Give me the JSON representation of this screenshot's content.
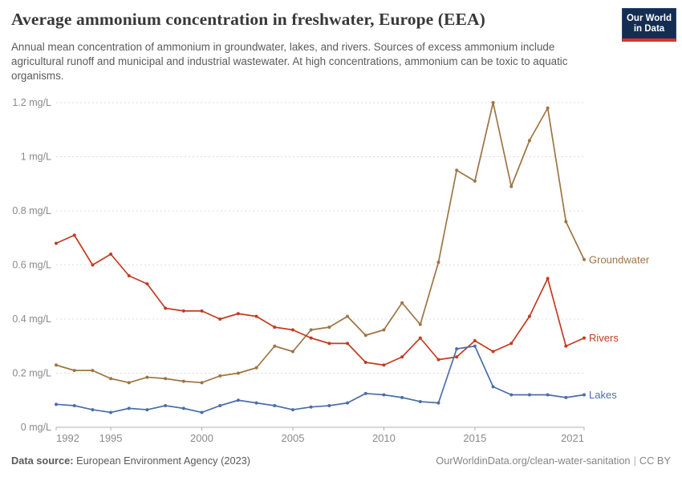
{
  "header": {
    "title": "Average ammonium concentration in freshwater, Europe (EEA)",
    "subtitle": "Annual mean concentration of ammonium in groundwater, lakes, and rivers. Sources of excess ammonium include agricultural runoff and municipal and industrial wastewater. At high concentrations, ammonium can be toxic to aquatic organisms.",
    "logo": {
      "line1": "Our World",
      "line2": "in Data",
      "bg_color": "#142E52",
      "bar_color": "#D8352B",
      "text_color": "#FFFFFF"
    }
  },
  "chart_data": {
    "type": "line",
    "title": "Average ammonium concentration in freshwater, Europe (EEA)",
    "xlabel": "",
    "ylabel": "mg/L",
    "ylim": [
      0,
      1.2
    ],
    "grid": true,
    "legend_position": "right",
    "x": [
      1992,
      1993,
      1994,
      1995,
      1996,
      1997,
      1998,
      1999,
      2000,
      2001,
      2002,
      2003,
      2004,
      2005,
      2006,
      2007,
      2008,
      2009,
      2010,
      2011,
      2012,
      2013,
      2014,
      2015,
      2016,
      2017,
      2018,
      2019,
      2020,
      2021
    ],
    "xticks": [
      1992,
      1995,
      2000,
      2005,
      2010,
      2015,
      2021
    ],
    "yticks": [
      {
        "value": 0,
        "label": "0 mg/L"
      },
      {
        "value": 0.2,
        "label": "0.2 mg/L"
      },
      {
        "value": 0.4,
        "label": "0.4 mg/L"
      },
      {
        "value": 0.6,
        "label": "0.6 mg/L"
      },
      {
        "value": 0.8,
        "label": "0.8 mg/L"
      },
      {
        "value": 1,
        "label": "1 mg/L"
      },
      {
        "value": 1.2,
        "label": "1.2 mg/L"
      }
    ],
    "series": [
      {
        "id": "groundwater",
        "name": "Groundwater",
        "color": "#9D7543",
        "values": [
          0.23,
          0.21,
          0.21,
          0.18,
          0.165,
          0.185,
          0.18,
          0.17,
          0.165,
          0.19,
          0.2,
          0.22,
          0.3,
          0.28,
          0.36,
          0.37,
          0.41,
          0.34,
          0.36,
          0.46,
          0.38,
          0.61,
          0.95,
          0.91,
          1.2,
          0.89,
          1.06,
          1.18,
          0.76,
          0.62
        ]
      },
      {
        "id": "rivers",
        "name": "Rivers",
        "color": "#C23C22",
        "values": [
          0.68,
          0.71,
          0.6,
          0.64,
          0.56,
          0.53,
          0.44,
          0.43,
          0.43,
          0.4,
          0.42,
          0.41,
          0.37,
          0.36,
          0.33,
          0.31,
          0.31,
          0.24,
          0.23,
          0.26,
          0.33,
          0.25,
          0.26,
          0.32,
          0.28,
          0.31,
          0.41,
          0.55,
          0.3,
          0.33
        ]
      },
      {
        "id": "lakes",
        "name": "Lakes",
        "color": "#4C6EA8",
        "values": [
          0.085,
          0.08,
          0.065,
          0.055,
          0.07,
          0.065,
          0.08,
          0.07,
          0.055,
          0.08,
          0.1,
          0.09,
          0.08,
          0.065,
          0.075,
          0.08,
          0.09,
          0.125,
          0.12,
          0.11,
          0.095,
          0.09,
          0.29,
          0.3,
          0.15,
          0.12,
          0.12,
          0.12,
          0.11,
          0.12
        ]
      }
    ]
  },
  "footer": {
    "source_label": "Data source:",
    "source_value": "European Environment Agency (2023)",
    "url": "OurWorldinData.org/clean-water-sanitation",
    "separator": "|",
    "license": "CC BY"
  }
}
